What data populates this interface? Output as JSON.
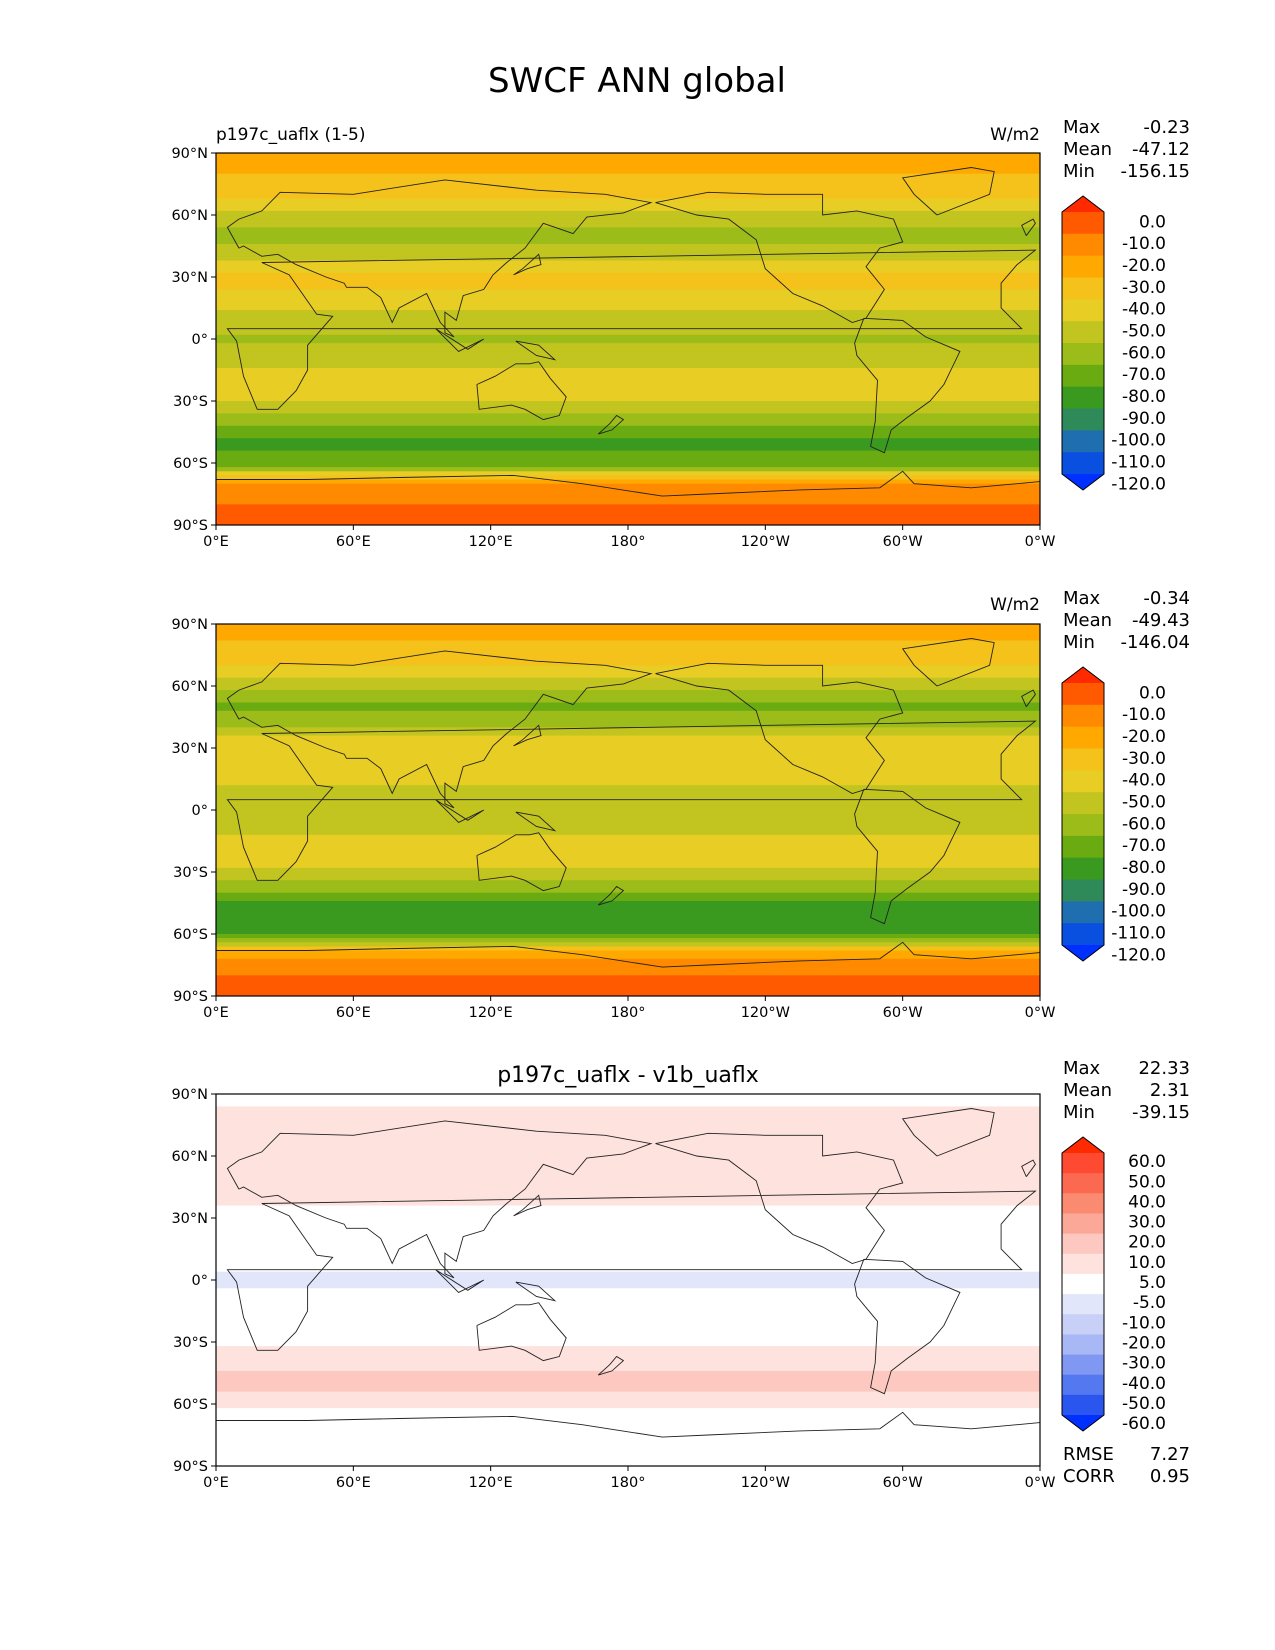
{
  "figure": {
    "title": "SWCF ANN global"
  },
  "x_ticks": [
    "0°E",
    "60°E",
    "120°E",
    "180°",
    "120°W",
    "60°W",
    "0°W"
  ],
  "y_ticks": [
    "90°N",
    "60°N",
    "30°N",
    "0°",
    "30°S",
    "60°S",
    "90°S"
  ],
  "chart_data": [
    {
      "type": "heatmap",
      "name": "test",
      "left_label": "p197c_uaflx (1-5)",
      "center_label": "",
      "units": "W/m2",
      "stats": [
        {
          "label": "Max",
          "value": "-0.23"
        },
        {
          "label": "Mean",
          "value": "-47.12"
        },
        {
          "label": "Min",
          "value": "-156.15"
        }
      ],
      "xlim": [
        0,
        360
      ],
      "ylim": [
        -90,
        90
      ],
      "colorbar": {
        "levels": [
          "0.0",
          "-10.0",
          "-20.0",
          "-30.0",
          "-40.0",
          "-50.0",
          "-60.0",
          "-70.0",
          "-80.0",
          "-90.0",
          "-100.0",
          "-110.0",
          "-120.0"
        ],
        "colors": [
          "#ff2a00",
          "#ff5a00",
          "#ff8a00",
          "#ffa800",
          "#f4c21a",
          "#e8cd24",
          "#c2c41f",
          "#9cbc1a",
          "#6aab12",
          "#3a9a20",
          "#2f8a5a",
          "#1f6fb0",
          "#0a50e0",
          "#0030ff"
        ]
      },
      "zonal_profile": {
        "lat": [
          90,
          80,
          70,
          60,
          50,
          40,
          30,
          20,
          10,
          0,
          -10,
          -20,
          -30,
          -40,
          -50,
          -60,
          -70,
          -80,
          -90
        ],
        "value": [
          -25,
          -30,
          -38,
          -52,
          -65,
          -55,
          -38,
          -42,
          -55,
          -62,
          -55,
          -45,
          -50,
          -65,
          -82,
          -78,
          -20,
          -10,
          -5
        ]
      }
    },
    {
      "type": "heatmap",
      "name": "reference",
      "left_label": "",
      "center_label": "",
      "units": "W/m2",
      "stats": [
        {
          "label": "Max",
          "value": "-0.34"
        },
        {
          "label": "Mean",
          "value": "-49.43"
        },
        {
          "label": "Min",
          "value": "-146.04"
        }
      ],
      "xlim": [
        0,
        360
      ],
      "ylim": [
        -90,
        90
      ],
      "colorbar": {
        "levels": [
          "0.0",
          "-10.0",
          "-20.0",
          "-30.0",
          "-40.0",
          "-50.0",
          "-60.0",
          "-70.0",
          "-80.0",
          "-90.0",
          "-100.0",
          "-110.0",
          "-120.0"
        ],
        "colors": [
          "#ff2a00",
          "#ff5a00",
          "#ff8a00",
          "#ffa800",
          "#f4c21a",
          "#e8cd24",
          "#c2c41f",
          "#9cbc1a",
          "#6aab12",
          "#3a9a20",
          "#2f8a5a",
          "#1f6fb0",
          "#0a50e0",
          "#0030ff"
        ]
      },
      "zonal_profile": {
        "lat": [
          90,
          80,
          70,
          60,
          50,
          40,
          30,
          20,
          10,
          0,
          -10,
          -20,
          -30,
          -40,
          -50,
          -60,
          -70,
          -80,
          -90
        ],
        "value": [
          -25,
          -32,
          -40,
          -58,
          -72,
          -60,
          -40,
          -42,
          -52,
          -60,
          -52,
          -45,
          -52,
          -72,
          -90,
          -82,
          -22,
          -10,
          -5
        ]
      }
    },
    {
      "type": "heatmap",
      "name": "difference",
      "left_label": "",
      "center_label": "p197c_uaflx - v1b_uaflx",
      "units": "",
      "stats": [
        {
          "label": "Max",
          "value": "22.33"
        },
        {
          "label": "Mean",
          "value": "2.31"
        },
        {
          "label": "Min",
          "value": "-39.15"
        }
      ],
      "metrics": [
        {
          "label": "RMSE",
          "value": "7.27"
        },
        {
          "label": "CORR",
          "value": "0.95"
        }
      ],
      "xlim": [
        0,
        360
      ],
      "ylim": [
        -90,
        90
      ],
      "colorbar": {
        "levels": [
          "60.0",
          "50.0",
          "40.0",
          "30.0",
          "20.0",
          "10.0",
          "5.0",
          "-5.0",
          "-10.0",
          "-20.0",
          "-30.0",
          "-40.0",
          "-50.0",
          "-60.0"
        ],
        "colors": [
          "#ff2a00",
          "#fd4a30",
          "#fb6a50",
          "#fa8a70",
          "#fba898",
          "#fcc8c0",
          "#fde2de",
          "#ffffff",
          "#e2e6fb",
          "#c8d0f8",
          "#a8b8f5",
          "#8098f2",
          "#5478ef",
          "#2a55ee",
          "#0030ff"
        ]
      },
      "zonal_profile": {
        "lat": [
          90,
          80,
          70,
          60,
          50,
          40,
          30,
          20,
          10,
          0,
          -10,
          -20,
          -30,
          -40,
          -50,
          -60,
          -70,
          -80,
          -90
        ],
        "value": [
          3,
          6,
          5,
          8,
          10,
          6,
          3,
          2,
          -3,
          -6,
          -4,
          3,
          4,
          8,
          12,
          6,
          1,
          0,
          0
        ]
      }
    }
  ]
}
